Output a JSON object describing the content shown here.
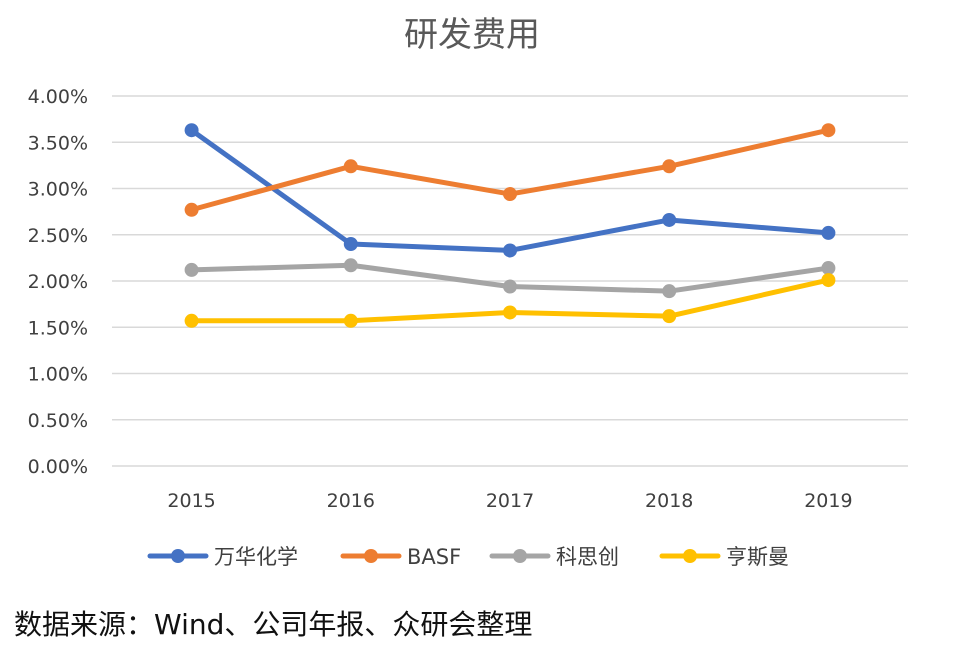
{
  "chart_data": {
    "type": "line",
    "title": "研发费用",
    "categories": [
      "2015",
      "2016",
      "2017",
      "2018",
      "2019"
    ],
    "y_ticks": [
      "0.00%",
      "0.50%",
      "1.00%",
      "1.50%",
      "2.00%",
      "2.50%",
      "3.00%",
      "3.50%",
      "4.00%"
    ],
    "ylim": [
      0,
      4
    ],
    "grid": true,
    "legend_position": "bottom",
    "series": [
      {
        "name": "万华化学",
        "color": "#4472C4",
        "values": [
          3.63,
          2.4,
          2.33,
          2.66,
          2.52
        ]
      },
      {
        "name": "BASF",
        "color": "#ED7D31",
        "values": [
          2.77,
          3.24,
          2.94,
          3.24,
          3.63
        ]
      },
      {
        "name": "科思创",
        "color": "#A5A5A5",
        "values": [
          2.12,
          2.17,
          1.94,
          1.89,
          2.14
        ]
      },
      {
        "name": "亨斯曼",
        "color": "#FFC000",
        "values": [
          1.57,
          1.57,
          1.66,
          1.62,
          2.01
        ]
      }
    ]
  },
  "source_note": "数据来源：Wind、公司年报、众研会整理"
}
